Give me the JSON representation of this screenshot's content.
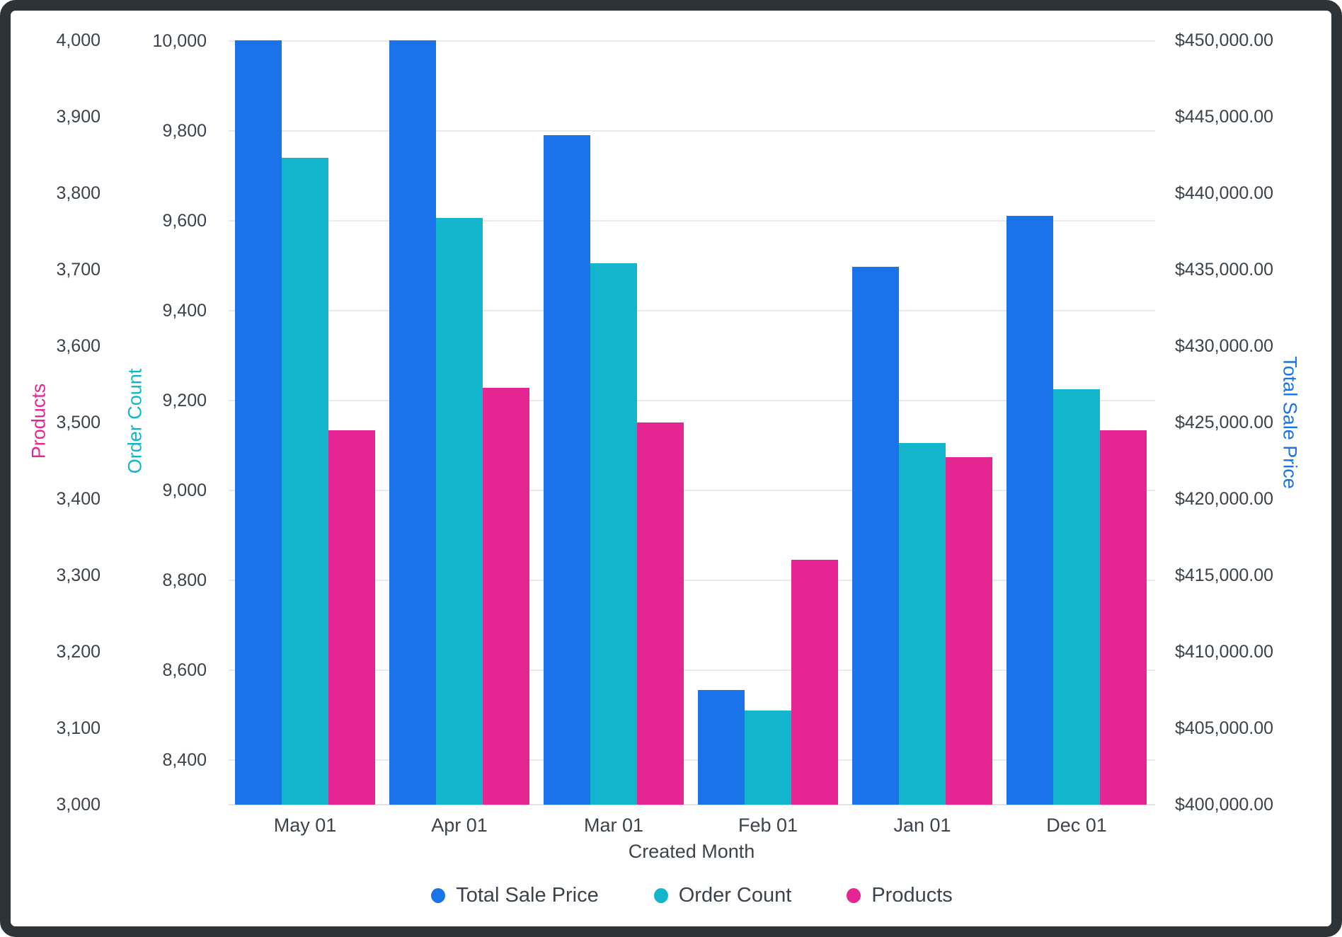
{
  "chart_data": {
    "type": "bar",
    "title": "",
    "xlabel": "Created Month",
    "categories": [
      "May 01",
      "Apr 01",
      "Mar 01",
      "Feb 01",
      "Jan 01",
      "Dec 01"
    ],
    "series": [
      {
        "name": "Total Sale Price",
        "axis": "price",
        "color": "#1A73E8",
        "values": [
          450000,
          450000,
          443800,
          407500,
          435200,
          438500
        ]
      },
      {
        "name": "Order Count",
        "axis": "order",
        "color": "#12B5CB",
        "values": [
          9740,
          9605,
          9505,
          8510,
          9105,
          9225
        ]
      },
      {
        "name": "Products",
        "axis": "products",
        "color": "#E52592",
        "values": [
          3490,
          3545,
          3500,
          3320,
          3455,
          3490
        ]
      }
    ],
    "axes": {
      "products": {
        "title": "Products",
        "color": "#E52592",
        "side": "left-outer",
        "min": 3000,
        "max": 4000,
        "tick_values": [
          4000,
          3900,
          3800,
          3700,
          3600,
          3500,
          3400,
          3300,
          3200,
          3100,
          3000
        ],
        "tick_labels": [
          "4,000",
          "3,900",
          "3,800",
          "3,700",
          "3,600",
          "3,500",
          "3,400",
          "3,300",
          "3,200",
          "3,100",
          "3,000"
        ]
      },
      "order": {
        "title": "Order Count",
        "color": "#12B5CB",
        "side": "left-inner",
        "min": 8400,
        "max": 10000,
        "tick_values": [
          10000,
          9800,
          9600,
          9400,
          9200,
          9000,
          8800,
          8600,
          8400
        ],
        "tick_labels": [
          "10,000",
          "9,800",
          "9,600",
          "9,400",
          "9,200",
          "9,000",
          "8,800",
          "8,600",
          "8,400"
        ]
      },
      "price": {
        "title": "Total Sale Price",
        "color": "#1A73E8",
        "side": "right",
        "min": 400000,
        "max": 450000,
        "tick_values": [
          450000,
          445000,
          440000,
          435000,
          430000,
          425000,
          420000,
          415000,
          410000,
          405000,
          400000
        ],
        "tick_labels": [
          "$450,000.00",
          "$445,000.00",
          "$440,000.00",
          "$435,000.00",
          "$430,000.00",
          "$425,000.00",
          "$420,000.00",
          "$415,000.00",
          "$410,000.00",
          "$405,000.00",
          "$400,000.00"
        ]
      }
    },
    "legend": [
      {
        "label": "Total Sale Price",
        "color": "#1A73E8"
      },
      {
        "label": "Order Count",
        "color": "#12B5CB"
      },
      {
        "label": "Products",
        "color": "#E52592"
      }
    ],
    "legend_position": "bottom",
    "grid": "horizontal gridlines at Order Count ticks"
  }
}
